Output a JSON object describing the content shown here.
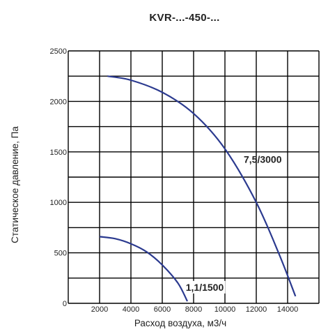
{
  "chart_data": {
    "type": "line",
    "title": "KVR-...-450-...",
    "xlabel": "Расход воздуха, м3/ч",
    "ylabel": "Статическое давление, Па",
    "xlim": [
      0,
      16000
    ],
    "ylim": [
      0,
      2500
    ],
    "x_ticks": [
      "2000",
      "4000",
      "6000",
      "8000",
      "10000",
      "12000",
      "14000"
    ],
    "y_ticks": [
      "0",
      "500",
      "1000",
      "1500",
      "2000",
      "2500"
    ],
    "grid": true,
    "series": [
      {
        "name": "7,5/3000",
        "color": "#2b3a8f",
        "points": [
          [
            2500,
            2250
          ],
          [
            4000,
            2210
          ],
          [
            6000,
            2090
          ],
          [
            8000,
            1880
          ],
          [
            10000,
            1530
          ],
          [
            12000,
            1000
          ],
          [
            13500,
            470
          ],
          [
            14500,
            70
          ]
        ]
      },
      {
        "name": "1,1/1500",
        "color": "#2b3a8f",
        "points": [
          [
            2000,
            660
          ],
          [
            3000,
            640
          ],
          [
            4000,
            590
          ],
          [
            5000,
            510
          ],
          [
            6000,
            380
          ],
          [
            7000,
            200
          ],
          [
            7600,
            20
          ]
        ]
      }
    ]
  }
}
